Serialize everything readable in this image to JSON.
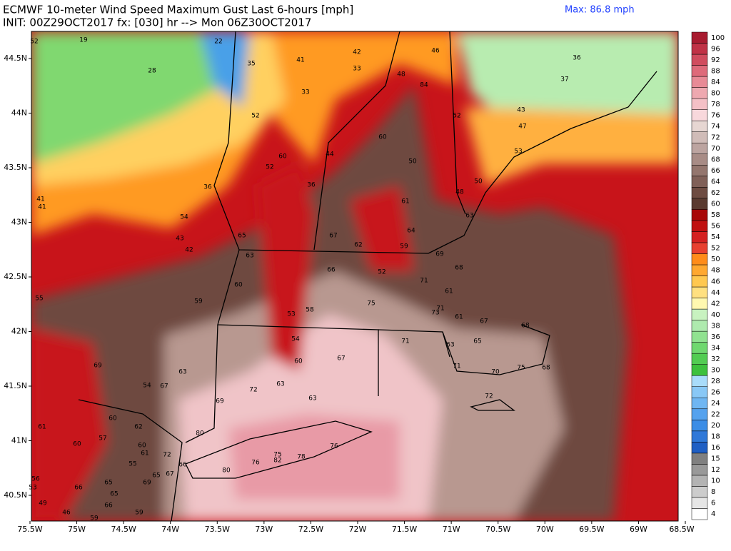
{
  "header": {
    "title": "ECMWF 10-meter Wind Speed Maximum Gust Last 6-hours [mph]",
    "subtitle": "INIT: 00Z29OCT2017 fx: [030] hr --> Mon 06Z30OCT2017",
    "max": "Max: 86.8 mph"
  },
  "map": {
    "lat_labels": [
      "44.5N",
      "44N",
      "43.5N",
      "43N",
      "42.5N",
      "42N",
      "41.5N",
      "41N",
      "40.5N"
    ],
    "lon_labels": [
      "75.5W",
      "75W",
      "74.5W",
      "74W",
      "73.5W",
      "73W",
      "72.5W",
      "72W",
      "71.5W",
      "71W",
      "70.5W",
      "70W",
      "69.5W",
      "69W",
      "68.5W"
    ],
    "point_values": [
      52,
      19,
      22,
      35,
      28,
      41,
      42,
      46,
      36,
      33,
      33,
      48,
      84,
      37,
      52,
      52,
      43,
      47,
      60,
      60,
      52,
      44,
      50,
      53,
      36,
      36,
      50,
      48,
      41,
      41,
      54,
      63,
      61,
      43,
      42,
      65,
      67,
      64,
      62,
      59,
      69,
      63,
      66,
      52,
      68,
      71,
      60,
      59,
      55,
      75,
      61,
      71,
      73,
      53,
      58,
      61,
      67,
      68,
      54,
      71,
      63,
      65,
      60,
      67,
      69,
      63,
      71,
      70,
      75,
      68,
      54,
      67,
      72,
      63,
      63,
      69,
      72,
      60,
      62,
      61,
      57,
      60,
      60,
      61,
      72,
      55,
      80,
      76,
      75,
      82,
      78,
      76,
      80,
      66,
      65,
      67,
      65,
      69,
      66,
      65,
      53,
      56,
      49,
      66,
      46,
      59,
      59
    ]
  },
  "colorbar": {
    "levels": [
      4,
      6,
      8,
      10,
      12,
      15,
      16,
      18,
      20,
      22,
      24,
      26,
      28,
      30,
      32,
      34,
      36,
      38,
      40,
      42,
      44,
      46,
      48,
      50,
      52,
      54,
      56,
      58,
      60,
      62,
      64,
      66,
      68,
      70,
      72,
      74,
      76,
      78,
      80,
      84,
      88,
      92,
      96,
      100
    ],
    "colors": [
      "#ffffff",
      "#e6e6e6",
      "#cccccc",
      "#b3b3b3",
      "#999999",
      "#808080",
      "#1f5fc4",
      "#2f78d8",
      "#3b8de6",
      "#55a2ee",
      "#6fb6f2",
      "#89c8f6",
      "#a9dcfa",
      "#3dc13d",
      "#52cc52",
      "#6fd86f",
      "#90e290",
      "#aeeaae",
      "#c8f2c0",
      "#fff8b0",
      "#ffe080",
      "#ffc850",
      "#ffa830",
      "#ff8c1a",
      "#e84030",
      "#d42020",
      "#c01010",
      "#a80808",
      "#5a3a30",
      "#6e4c42",
      "#806058",
      "#94766e",
      "#a88c86",
      "#bca4a0",
      "#d0bcb8",
      "#e6d6d2",
      "#f8d8dc",
      "#f4c0c6",
      "#eea8b0",
      "#e88a96",
      "#de6a7a",
      "#d04c5e",
      "#c03246",
      "#a81c30"
    ]
  }
}
